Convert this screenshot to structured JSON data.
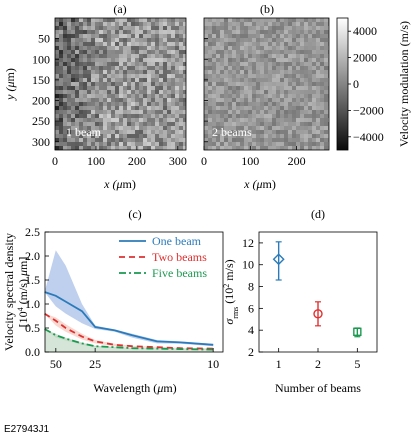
{
  "figure_id": "E27943J1",
  "chart_data": [
    {
      "panel": "(a)",
      "type": "heatmap",
      "annotation": "1 beam",
      "x_ticks": [
        "0",
        "100",
        "200",
        "300"
      ],
      "y_ticks": [
        "50",
        "100",
        "150",
        "200",
        "250",
        "300"
      ],
      "xlabel_parts": [
        "x (",
        "μ",
        "m)"
      ],
      "ylabel_parts": [
        "y (",
        "μ",
        "m)"
      ],
      "xlim": [
        0,
        320
      ],
      "ylim": [
        320,
        0
      ],
      "colormap": "grayscale",
      "texture_amplitude": 1.0
    },
    {
      "panel": "(b)",
      "type": "heatmap",
      "annotation": "2 beams",
      "x_ticks": [
        "0",
        "100",
        "200"
      ],
      "xlabel_parts": [
        "x (",
        "μ",
        "m)"
      ],
      "xlim": [
        0,
        270
      ],
      "ylim": [
        320,
        0
      ],
      "colormap": "grayscale",
      "texture_amplitude": 0.55,
      "colorbar": {
        "label": "Velocity modulation (m/s)",
        "ticks": [
          "4000",
          "2000",
          "0",
          "−2000",
          "−4000"
        ],
        "tick_values": [
          4000,
          2000,
          0,
          -2000,
          -4000
        ],
        "range": [
          -5000,
          5000
        ]
      }
    },
    {
      "panel": "(c)",
      "type": "area",
      "ylabel_line1": "Velocity spectral density",
      "ylabel_line2_parts": [
        "[10",
        "4",
        " (m/s) ",
        "μ",
        "m]"
      ],
      "xlabel_parts": [
        "Wavelength (",
        "μ",
        "m)"
      ],
      "x_scale": "reciprocal",
      "x_ticks": [
        50,
        25,
        10
      ],
      "y_ticks": [
        "0.0",
        "0.5",
        "1.0",
        "1.5",
        "2.0",
        "2.5"
      ],
      "ylim": [
        0,
        2.5
      ],
      "x_data_range_inv": [
        0.0145,
        0.105
      ],
      "x": [
        70,
        50,
        40,
        30,
        25,
        20,
        17,
        14,
        12,
        10
      ],
      "series": [
        {
          "name": "One beam",
          "color": "#2b7bba",
          "dash": "solid",
          "values": [
            1.25,
            1.17,
            1.05,
            0.85,
            0.52,
            0.45,
            0.35,
            0.22,
            0.2,
            0.15
          ],
          "band_upper": [
            1.25,
            2.12,
            1.8,
            1.0,
            0.55,
            0.47,
            0.38,
            0.25,
            0.22,
            0.17
          ],
          "band_lower": [
            1.25,
            0.95,
            0.8,
            0.6,
            0.48,
            0.42,
            0.3,
            0.18,
            0.17,
            0.12
          ],
          "band_color": "#aec4ea"
        },
        {
          "name": "Two beams",
          "color": "#e03030",
          "dash": "dashed",
          "values": [
            0.8,
            0.65,
            0.5,
            0.32,
            0.22,
            0.15,
            0.12,
            0.1,
            0.08,
            0.07
          ],
          "band_upper": [
            0.8,
            0.72,
            0.58,
            0.38,
            0.25,
            0.17,
            0.13,
            0.11,
            0.09,
            0.08
          ],
          "band_lower": [
            0.8,
            0.55,
            0.42,
            0.26,
            0.18,
            0.12,
            0.1,
            0.08,
            0.07,
            0.06
          ],
          "band_color": "#f6d0c6"
        },
        {
          "name": "Five beams",
          "color": "#1a9a50",
          "dash": "dashdot",
          "values": [
            0.48,
            0.35,
            0.28,
            0.18,
            0.12,
            0.1,
            0.08,
            0.07,
            0.06,
            0.05
          ],
          "band_upper": [
            0.48,
            0.38,
            0.3,
            0.2,
            0.13,
            0.11,
            0.09,
            0.08,
            0.07,
            0.06
          ],
          "band_lower": [
            0.48,
            0.3,
            0.24,
            0.15,
            0.1,
            0.08,
            0.07,
            0.06,
            0.05,
            0.04
          ],
          "band_color": "#c4dcc9"
        }
      ],
      "legend_position": "top-right"
    },
    {
      "panel": "(d)",
      "type": "scatter",
      "ylabel_parts": [
        "σ",
        "rms",
        " (10",
        "2",
        " m/s)"
      ],
      "xlabel": "Number of beams",
      "categories": [
        "1",
        "2",
        "5"
      ],
      "y_ticks": [
        "2",
        "4",
        "6",
        "8",
        "10",
        "12"
      ],
      "ylim": [
        2,
        13
      ],
      "points": [
        {
          "category": "1",
          "value": 10.5,
          "err_low": 8.6,
          "err_high": 12.1,
          "marker": "diamond",
          "color": "#2b7bba"
        },
        {
          "category": "2",
          "value": 5.5,
          "err_low": 4.4,
          "err_high": 6.6,
          "marker": "circle",
          "color": "#e03030"
        },
        {
          "category": "5",
          "value": 3.85,
          "err_low": 3.4,
          "err_high": 4.2,
          "marker": "square",
          "color": "#1a9a50"
        }
      ]
    }
  ]
}
